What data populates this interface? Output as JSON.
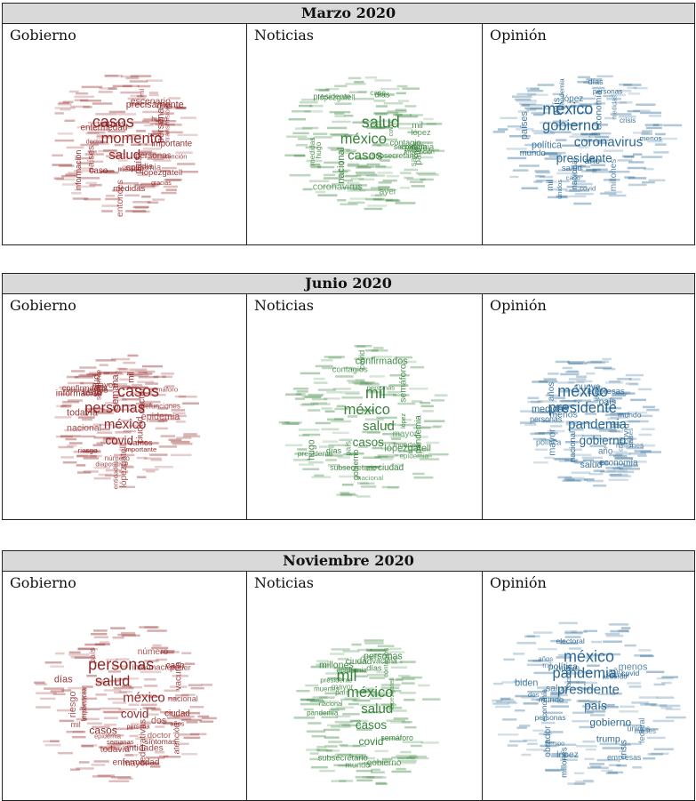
{
  "panels": [
    {
      "title": "Marzo 2020",
      "columns": [
        {
          "label": "Gobierno",
          "color": "#8b1a1a",
          "big": [
            "casos",
            "momento",
            "salud"
          ],
          "mid": [
            "personas",
            "entonces",
            "méxico",
            "caso",
            "gracias",
            "hugo",
            "epidemia",
            "medidas",
            "enfermedad",
            "vamos",
            "mil",
            "doctor",
            "país",
            "día",
            "días",
            "escenario",
            "información",
            "importante",
            "atención",
            "transmisión",
            "lópezgatell",
            "tres",
            "persona",
            "países",
            "precisamente"
          ]
        },
        {
          "label": "Noticias",
          "color": "#2e7d32",
          "big": [
            "salud",
            "méxico",
            "casos"
          ],
          "mid": [
            "coronavirus",
            "covid",
            "personas",
            "subsecretario",
            "medidas",
            "lópezgatell",
            "país",
            "secretaría",
            "prevención",
            "hugo",
            "caso",
            "nacional",
            "presidente",
            "salud",
            "mil",
            "días",
            "epidemia",
            "contagio",
            "ayer",
            "lópez"
          ]
        },
        {
          "label": "Opinión",
          "color": "#1f5f8b",
          "big": [
            "méxico",
            "gobierno",
            "coronavirus",
            "presidente"
          ],
          "mid": [
            "pandemia",
            "crisis",
            "salud",
            "covid",
            "millones",
            "mundo",
            "países",
            "medidas",
            "personas",
            "economía",
            "nacional",
            "país",
            "unidos",
            "lópez",
            "año",
            "caso",
            "mil",
            "días",
            "menos",
            "política"
          ]
        }
      ]
    },
    {
      "title": "Junio 2020",
      "columns": [
        {
          "label": "Gobierno",
          "color": "#8b1a1a",
          "big": [
            "casos",
            "personas",
            "méxico",
            "covid"
          ],
          "mid": [
            "epidemia",
            "siguiente",
            "salud",
            "riesgo",
            "diapositiva",
            "mil",
            "entidades",
            "importante",
            "semáforo",
            "doctor",
            "todavía",
            "lópezgatell",
            "nacional",
            "confirmados",
            "ciudad",
            "número",
            "mayor",
            "tiempo",
            "información",
            "defunciones",
            "vamos",
            "caso",
            "semana"
          ]
        },
        {
          "label": "Noticias",
          "color": "#2e7d32",
          "big": [
            "mil",
            "méxico",
            "salud",
            "casos"
          ],
          "mid": [
            "personas",
            "covid",
            "contagios",
            "lópezgatell",
            "país",
            "semáforo",
            "epidemia",
            "hugo",
            "gobierno",
            "muertes",
            "nacional",
            "ciudad",
            "subsecretario",
            "pandemia",
            "confirmados",
            "lópez",
            "mayor",
            "días",
            "presidente"
          ]
        },
        {
          "label": "Opinión",
          "color": "#1f5f8b",
          "big": [
            "méxico",
            "presidente",
            "pandemia",
            "gobierno"
          ],
          "mid": [
            "millones",
            "país",
            "mil",
            "covid",
            "salud",
            "crisis",
            "mundo",
            "nacional",
            "años",
            "economía",
            "política",
            "empresas",
            "lópez",
            "nueva",
            "países",
            "año",
            "menos",
            "personas",
            "medidas",
            "dos",
            "mayor"
          ]
        }
      ]
    },
    {
      "title": "Noviembre 2020",
      "columns": [
        {
          "label": "Gobierno",
          "color": "#8b1a1a",
          "big": [
            "personas",
            "salud",
            "méxico",
            "covid",
            "casos"
          ],
          "mid": [
            "semanas",
            "riesgo",
            "nacional",
            "entidades",
            "importante",
            "epidemia",
            "atención",
            "enfermedad",
            "doctor",
            "mayor",
            "vacuna",
            "país",
            "número",
            "información",
            "persona",
            "federativas",
            "todavía",
            "poder",
            "tendencia",
            "mil",
            "síntomas",
            "ciudad",
            "días",
            "dos",
            "años",
            "caso"
          ]
        },
        {
          "label": "Noticias",
          "color": "#2e7d32",
          "big": [
            "mil",
            "méxico",
            "salud",
            "casos",
            "covid"
          ],
          "mid": [
            "país",
            "contagios",
            "lópezgatell",
            "mundo",
            "subsecretario",
            "pandemia",
            "gobierno",
            "vacuna",
            "personas",
            "muertes",
            "nacional",
            "semáforo",
            "epidemia",
            "ciudad",
            "presidente",
            "días",
            "millones",
            "mayor"
          ]
        },
        {
          "label": "Opinión",
          "color": "#1f5f8b",
          "big": [
            "méxico",
            "pandemia",
            "presidente",
            "país",
            "gobierno",
            "trump"
          ],
          "mid": [
            "millones",
            "covid",
            "año",
            "mil",
            "biden",
            "unidos",
            "política",
            "nacional",
            "dos",
            "nuevo",
            "economía",
            "personas",
            "menos",
            "lópez",
            "meses",
            "años",
            "tiempo",
            "electoral",
            "federal",
            "acuerdo",
            "salud",
            "mundo",
            "crisis",
            "vacuna",
            "empresas",
            "obrador"
          ]
        }
      ]
    }
  ]
}
